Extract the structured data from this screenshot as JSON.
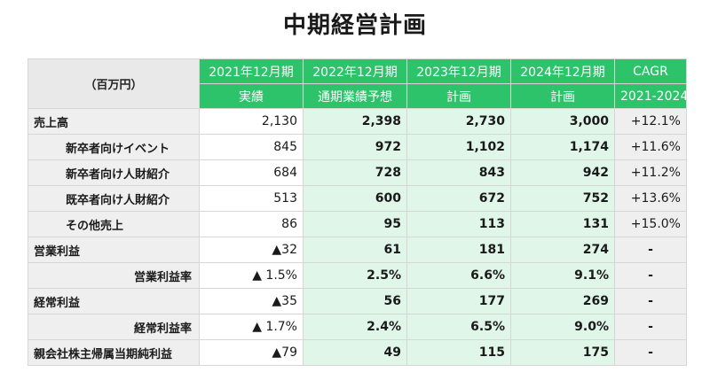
{
  "title": "中期経営計画",
  "table": {
    "unit": "（百万円）",
    "headers": [
      {
        "top": "2021年12月期",
        "bottom": "実績"
      },
      {
        "top": "2022年12月期",
        "bottom": "通期業績予想"
      },
      {
        "top": "2023年12月期",
        "bottom": "計画"
      },
      {
        "top": "2024年12月期",
        "bottom": "計画"
      },
      {
        "top": "CAGR",
        "bottom": "2021-2024"
      }
    ],
    "rows": [
      {
        "label": "売上高",
        "indent": 0,
        "values": [
          "2,130",
          "2,398",
          "2,730",
          "3,000",
          "+12.1%"
        ]
      },
      {
        "label": "新卒者向けイベント",
        "indent": 1,
        "values": [
          "845",
          "972",
          "1,102",
          "1,174",
          "+11.6%"
        ]
      },
      {
        "label": "新卒者向け人財紹介",
        "indent": 1,
        "values": [
          "684",
          "728",
          "843",
          "942",
          "+11.2%"
        ]
      },
      {
        "label": "既卒者向け人財紹介",
        "indent": 1,
        "values": [
          "513",
          "600",
          "672",
          "752",
          "+13.6%"
        ]
      },
      {
        "label": "その他売上",
        "indent": 1,
        "values": [
          "86",
          "95",
          "113",
          "131",
          "+15.0%"
        ]
      },
      {
        "label": "営業利益",
        "indent": 0,
        "values": [
          "▲32",
          "61",
          "181",
          "274",
          "-"
        ]
      },
      {
        "label": "営業利益率",
        "indent": 2,
        "values": [
          "▲ 1.5%",
          "2.5%",
          "6.6%",
          "9.1%",
          "-"
        ]
      },
      {
        "label": "経常利益",
        "indent": 0,
        "values": [
          "▲35",
          "56",
          "177",
          "269",
          "-"
        ]
      },
      {
        "label": "経常利益率",
        "indent": 2,
        "values": [
          "▲ 1.7%",
          "2.4%",
          "6.5%",
          "9.0%",
          "-"
        ]
      },
      {
        "label": "親会社株主帰属当期純利益",
        "indent": 0,
        "values": [
          "▲79",
          "49",
          "115",
          "175",
          "-"
        ]
      }
    ]
  }
}
